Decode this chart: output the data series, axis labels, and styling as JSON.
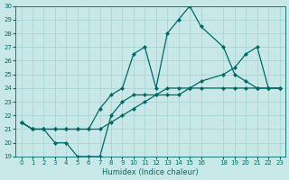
{
  "xlabel": "Humidex (Indice chaleur)",
  "bg_color": "#c8e8e8",
  "grid_color": "#aad4d4",
  "line_color": "#006868",
  "ylim": [
    19,
    30
  ],
  "xlim": [
    -0.5,
    23.5
  ],
  "yticks": [
    19,
    20,
    21,
    22,
    23,
    24,
    25,
    26,
    27,
    28,
    29,
    30
  ],
  "xticks": [
    0,
    1,
    2,
    3,
    4,
    5,
    6,
    7,
    8,
    9,
    10,
    11,
    12,
    13,
    14,
    15,
    16,
    18,
    19,
    20,
    21,
    22,
    23
  ],
  "x_indices": [
    0,
    1,
    2,
    3,
    4,
    5,
    6,
    7,
    8,
    9,
    10,
    11,
    12,
    13,
    14,
    15,
    16,
    18,
    19,
    20,
    21,
    22,
    23
  ],
  "series": [
    [
      21.5,
      21.0,
      21.0,
      20.0,
      20.0,
      19.0,
      19.0,
      19.0,
      22.0,
      23.0,
      23.5,
      23.5,
      23.5,
      23.5,
      23.5,
      24.0,
      24.0,
      24.0,
      24.0,
      24.0,
      24.0,
      24.0,
      24.0
    ],
    [
      21.5,
      21.0,
      21.0,
      21.0,
      21.0,
      21.0,
      21.0,
      22.5,
      23.5,
      24.0,
      26.5,
      27.0,
      24.0,
      28.0,
      29.0,
      30.0,
      28.5,
      27.0,
      25.0,
      24.5,
      24.0,
      24.0,
      24.0
    ],
    [
      21.5,
      21.0,
      21.0,
      21.0,
      21.0,
      21.0,
      21.0,
      21.0,
      21.5,
      22.0,
      22.5,
      23.0,
      23.5,
      24.0,
      24.0,
      24.0,
      24.5,
      25.0,
      25.5,
      26.5,
      27.0,
      24.0,
      24.0
    ]
  ]
}
